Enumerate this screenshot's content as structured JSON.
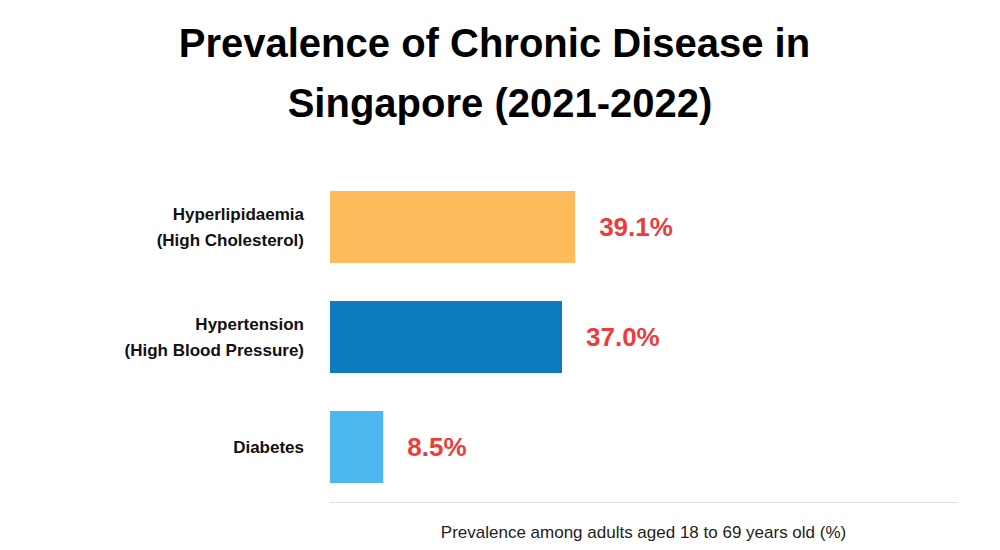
{
  "chart_data": {
    "type": "bar",
    "title": "Prevalence of Chronic Disease in Singapore (2021-2022)",
    "xlabel": "Prevalence among adults aged 18 to 69 years old (%)",
    "categories": [
      "Hyperlipidaemia\n(High Cholesterol)",
      "Hypertension\n(High Blood Pressure)",
      "Diabetes"
    ],
    "values": [
      39.1,
      37.0,
      8.5
    ],
    "value_labels": [
      "39.1%",
      "37.0%",
      "8.5%"
    ],
    "colors": [
      "#fdbb5c",
      "#0f7bbf",
      "#4db8ef"
    ],
    "xlim": [
      0,
      100
    ],
    "orientation": "horizontal",
    "data_labels": true,
    "tick_labels": "y",
    "grid": false
  }
}
